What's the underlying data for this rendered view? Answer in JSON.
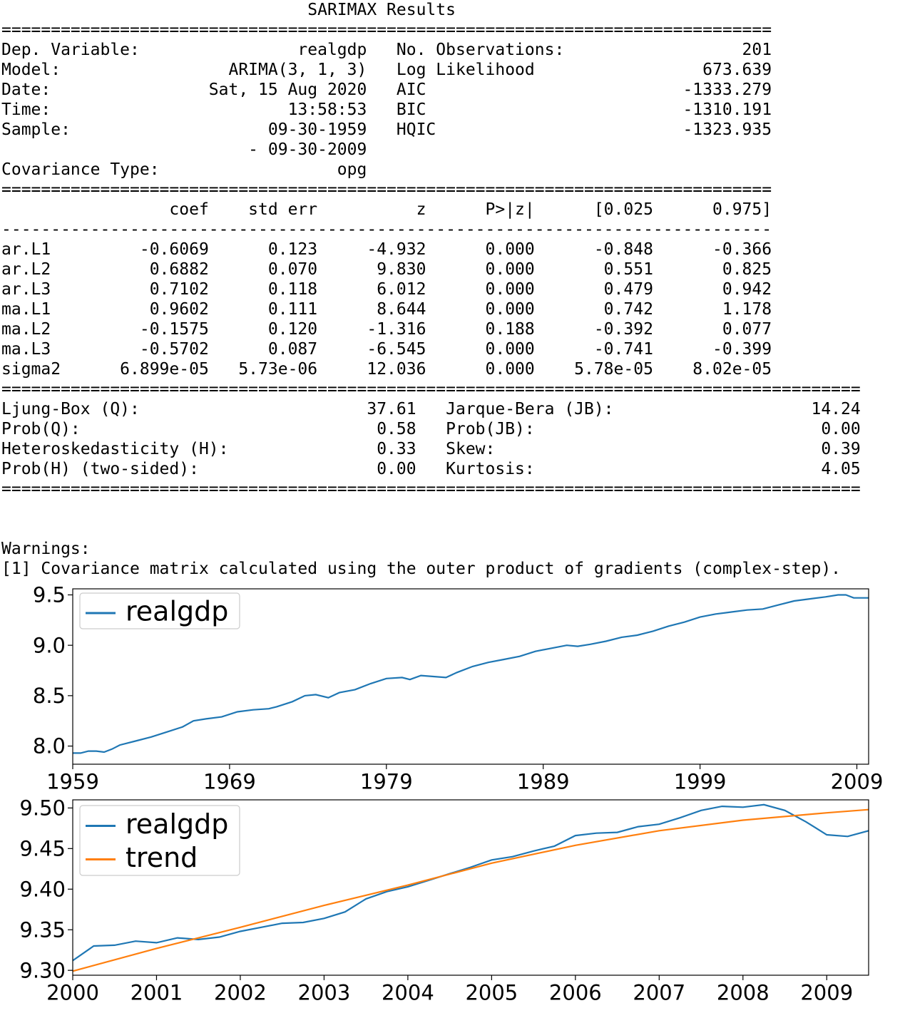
{
  "summary": {
    "title": "SARIMAX Results",
    "header_left": [
      {
        "label": "Dep. Variable:",
        "value": "realgdp"
      },
      {
        "label": "Model:",
        "value": "ARIMA(3, 1, 3)"
      },
      {
        "label": "Date:",
        "value": "Sat, 15 Aug 2020"
      },
      {
        "label": "Time:",
        "value": "13:58:53"
      },
      {
        "label": "Sample:",
        "value": "09-30-1959"
      },
      {
        "label": "",
        "value": "- 09-30-2009"
      },
      {
        "label": "Covariance Type:",
        "value": "opg"
      }
    ],
    "header_right": [
      {
        "label": "No. Observations:",
        "value": "201"
      },
      {
        "label": "Log Likelihood",
        "value": "673.639"
      },
      {
        "label": "AIC",
        "value": "-1333.279"
      },
      {
        "label": "BIC",
        "value": "-1310.191"
      },
      {
        "label": "HQIC",
        "value": "-1323.935"
      }
    ],
    "coef_columns": [
      "",
      "coef",
      "std err",
      "z",
      "P>|z|",
      "[0.025",
      "0.975]"
    ],
    "coef_rows": [
      [
        "ar.L1",
        "-0.6069",
        "0.123",
        "-4.932",
        "0.000",
        "-0.848",
        "-0.366"
      ],
      [
        "ar.L2",
        "0.6882",
        "0.070",
        "9.830",
        "0.000",
        "0.551",
        "0.825"
      ],
      [
        "ar.L3",
        "0.7102",
        "0.118",
        "6.012",
        "0.000",
        "0.479",
        "0.942"
      ],
      [
        "ma.L1",
        "0.9602",
        "0.111",
        "8.644",
        "0.000",
        "0.742",
        "1.178"
      ],
      [
        "ma.L2",
        "-0.1575",
        "0.120",
        "-1.316",
        "0.188",
        "-0.392",
        "0.077"
      ],
      [
        "ma.L3",
        "-0.5702",
        "0.087",
        "-6.545",
        "0.000",
        "-0.741",
        "-0.399"
      ],
      [
        "sigma2",
        "6.899e-05",
        "5.73e-06",
        "12.036",
        "0.000",
        "5.78e-05",
        "8.02e-05"
      ]
    ],
    "diag_left": [
      {
        "label": "Ljung-Box (Q):",
        "value": "37.61"
      },
      {
        "label": "Prob(Q):",
        "value": "0.58"
      },
      {
        "label": "Heteroskedasticity (H):",
        "value": "0.33"
      },
      {
        "label": "Prob(H) (two-sided):",
        "value": "0.00"
      }
    ],
    "diag_right": [
      {
        "label": "Jarque-Bera (JB):",
        "value": "14.24"
      },
      {
        "label": "Prob(JB):",
        "value": "0.00"
      },
      {
        "label": "Skew:",
        "value": "0.39"
      },
      {
        "label": "Kurtosis:",
        "value": "4.05"
      }
    ],
    "warnings_title": "Warnings:",
    "warnings": [
      "[1] Covariance matrix calculated using the outer product of gradients (complex-step)."
    ]
  },
  "colors": {
    "realgdp": "#1f77b4",
    "trend": "#ff7f0e"
  },
  "chart_data": [
    {
      "type": "line",
      "x_ticks": [
        "1959",
        "1969",
        "1979",
        "1989",
        "1999",
        "2009"
      ],
      "y_ticks": [
        "8.0",
        "8.5",
        "9.0",
        "9.5"
      ],
      "xlim": [
        1959.0,
        2009.75
      ],
      "ylim": [
        7.82,
        9.56
      ],
      "legend_position": "upper left",
      "series": [
        {
          "name": "realgdp",
          "color": "#1f77b4",
          "points": [
            [
              1959.0,
              7.93
            ],
            [
              1959.5,
              7.93
            ],
            [
              1960.0,
              7.95
            ],
            [
              1960.5,
              7.95
            ],
            [
              1961.0,
              7.94
            ],
            [
              1961.5,
              7.97
            ],
            [
              1962.0,
              8.01
            ],
            [
              1962.5,
              8.03
            ],
            [
              1963.0,
              8.05
            ],
            [
              1964.0,
              8.09
            ],
            [
              1965.0,
              8.14
            ],
            [
              1966.0,
              8.19
            ],
            [
              1966.7,
              8.25
            ],
            [
              1967.5,
              8.27
            ],
            [
              1968.5,
              8.29
            ],
            [
              1969.5,
              8.34
            ],
            [
              1970.5,
              8.36
            ],
            [
              1971.5,
              8.37
            ],
            [
              1972.0,
              8.39
            ],
            [
              1973.0,
              8.44
            ],
            [
              1973.8,
              8.5
            ],
            [
              1974.5,
              8.51
            ],
            [
              1975.3,
              8.48
            ],
            [
              1976.0,
              8.53
            ],
            [
              1977.0,
              8.56
            ],
            [
              1978.0,
              8.62
            ],
            [
              1979.0,
              8.67
            ],
            [
              1980.0,
              8.68
            ],
            [
              1980.5,
              8.66
            ],
            [
              1981.2,
              8.7
            ],
            [
              1982.0,
              8.69
            ],
            [
              1982.8,
              8.68
            ],
            [
              1983.5,
              8.73
            ],
            [
              1984.5,
              8.79
            ],
            [
              1985.5,
              8.83
            ],
            [
              1986.5,
              8.86
            ],
            [
              1987.5,
              8.89
            ],
            [
              1988.5,
              8.94
            ],
            [
              1989.5,
              8.97
            ],
            [
              1990.5,
              9.0
            ],
            [
              1991.2,
              8.99
            ],
            [
              1992.0,
              9.01
            ],
            [
              1993.0,
              9.04
            ],
            [
              1994.0,
              9.08
            ],
            [
              1995.0,
              9.1
            ],
            [
              1996.0,
              9.14
            ],
            [
              1997.0,
              9.19
            ],
            [
              1998.0,
              9.23
            ],
            [
              1999.0,
              9.28
            ],
            [
              2000.0,
              9.31
            ],
            [
              2001.0,
              9.33
            ],
            [
              2002.0,
              9.35
            ],
            [
              2003.0,
              9.36
            ],
            [
              2004.0,
              9.4
            ],
            [
              2005.0,
              9.44
            ],
            [
              2006.0,
              9.46
            ],
            [
              2007.0,
              9.48
            ],
            [
              2007.8,
              9.5
            ],
            [
              2008.3,
              9.5
            ],
            [
              2008.8,
              9.47
            ],
            [
              2009.3,
              9.47
            ],
            [
              2009.75,
              9.47
            ]
          ]
        }
      ]
    },
    {
      "type": "line",
      "x_ticks": [
        "2000",
        "2001",
        "2002",
        "2003",
        "2004",
        "2005",
        "2006",
        "2007",
        "2008",
        "2009"
      ],
      "y_ticks": [
        "9.30",
        "9.35",
        "9.40",
        "9.45",
        "9.50"
      ],
      "xlim": [
        2000.0,
        2009.5
      ],
      "ylim": [
        9.294,
        9.51
      ],
      "legend_position": "upper left",
      "series": [
        {
          "name": "realgdp",
          "color": "#1f77b4",
          "points": [
            [
              2000.0,
              9.312
            ],
            [
              2000.25,
              9.33
            ],
            [
              2000.5,
              9.331
            ],
            [
              2000.75,
              9.336
            ],
            [
              2001.0,
              9.334
            ],
            [
              2001.25,
              9.34
            ],
            [
              2001.5,
              9.338
            ],
            [
              2001.75,
              9.341
            ],
            [
              2002.0,
              9.348
            ],
            [
              2002.25,
              9.353
            ],
            [
              2002.5,
              9.358
            ],
            [
              2002.75,
              9.359
            ],
            [
              2003.0,
              9.364
            ],
            [
              2003.25,
              9.372
            ],
            [
              2003.5,
              9.388
            ],
            [
              2003.75,
              9.397
            ],
            [
              2004.0,
              9.403
            ],
            [
              2004.25,
              9.411
            ],
            [
              2004.5,
              9.419
            ],
            [
              2004.75,
              9.427
            ],
            [
              2005.0,
              9.436
            ],
            [
              2005.25,
              9.44
            ],
            [
              2005.5,
              9.447
            ],
            [
              2005.75,
              9.453
            ],
            [
              2006.0,
              9.466
            ],
            [
              2006.25,
              9.469
            ],
            [
              2006.5,
              9.47
            ],
            [
              2006.75,
              9.477
            ],
            [
              2007.0,
              9.48
            ],
            [
              2007.25,
              9.488
            ],
            [
              2007.5,
              9.497
            ],
            [
              2007.75,
              9.502
            ],
            [
              2008.0,
              9.501
            ],
            [
              2008.25,
              9.504
            ],
            [
              2008.5,
              9.497
            ],
            [
              2008.75,
              9.483
            ],
            [
              2009.0,
              9.467
            ],
            [
              2009.25,
              9.465
            ],
            [
              2009.5,
              9.472
            ]
          ]
        },
        {
          "name": "trend",
          "color": "#ff7f0e",
          "points": [
            [
              2000.0,
              9.299
            ],
            [
              2001.0,
              9.327
            ],
            [
              2002.0,
              9.353
            ],
            [
              2003.0,
              9.38
            ],
            [
              2004.0,
              9.405
            ],
            [
              2005.0,
              9.432
            ],
            [
              2006.0,
              9.454
            ],
            [
              2007.0,
              9.472
            ],
            [
              2008.0,
              9.485
            ],
            [
              2009.0,
              9.494
            ],
            [
              2009.5,
              9.498
            ]
          ]
        }
      ]
    }
  ]
}
